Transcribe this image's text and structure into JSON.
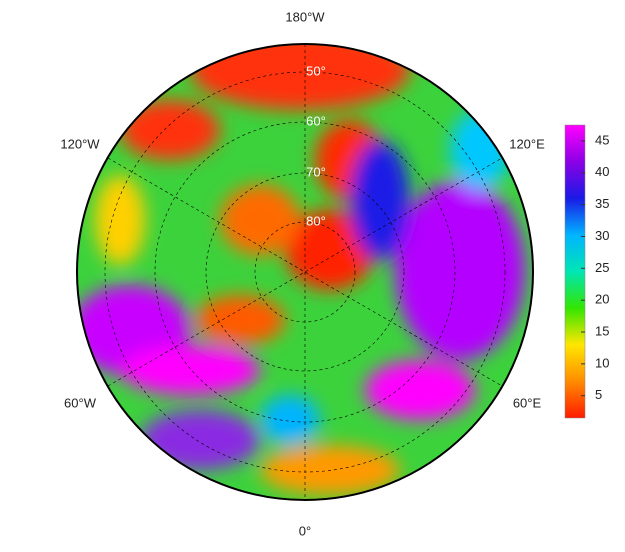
{
  "map": {
    "longitude_labels": [
      "180°W",
      "120°W",
      "120°E",
      "60°W",
      "60°E",
      "0°"
    ],
    "latitude_labels": [
      "50°",
      "60°",
      "70°",
      "80°"
    ]
  },
  "colorbar": {
    "lim": [
      1.5,
      47.5
    ],
    "ticks": [
      5,
      10,
      15,
      20,
      25,
      30,
      35,
      40,
      45
    ],
    "colors": [
      "#ff1a00",
      "#ff8c00",
      "#ffe600",
      "#33e600",
      "#00e6b4",
      "#00b4ff",
      "#1a1ae6",
      "#8c00e6",
      "#ff00ff"
    ]
  }
}
